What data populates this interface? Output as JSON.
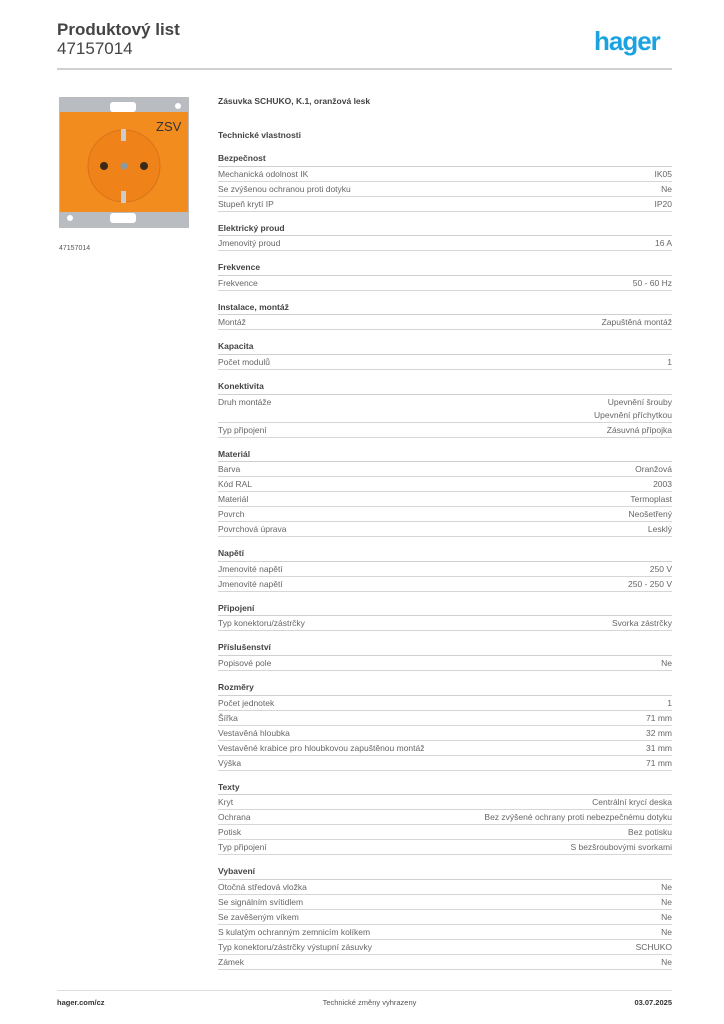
{
  "header": {
    "title": "Produktový list",
    "doc_number": "47157014",
    "logo": "hager",
    "brand_color": "#1aa3e0"
  },
  "product": {
    "name": "Zásuvka SCHUKO, K.1, oranžová lesk",
    "image_caption": "47157014",
    "image_label": "ZSV",
    "product_color": "#f28c1e",
    "section_title": "Technické vlastnosti"
  },
  "sections": [
    {
      "title": "Bezpečnost",
      "rows": [
        [
          "Mechanická odolnost IK",
          "IK05"
        ],
        [
          "Se zvýšenou ochranou proti dotyku",
          "Ne"
        ],
        [
          "Stupeň krytí IP",
          "IP20"
        ]
      ]
    },
    {
      "title": "Elektrický proud",
      "rows": [
        [
          "Jmenovitý proud",
          "16 A"
        ]
      ]
    },
    {
      "title": "Frekvence",
      "rows": [
        [
          "Frekvence",
          "50 - 60 Hz"
        ]
      ]
    },
    {
      "title": "Instalace, montáž",
      "rows": [
        [
          "Montáž",
          "Zapuštěná montáž"
        ]
      ]
    },
    {
      "title": "Kapacita",
      "rows": [
        [
          "Počet modulů",
          "1"
        ]
      ]
    },
    {
      "title": "Konektivita",
      "rows": [
        [
          "Druh montáže",
          "Upevnění šrouby\nUpevnění příchytkou"
        ],
        [
          "Typ připojení",
          "Zásuvná přípojka"
        ]
      ]
    },
    {
      "title": "Materiál",
      "rows": [
        [
          "Barva",
          "Oranžová"
        ],
        [
          "Kód RAL",
          "2003"
        ],
        [
          "Materiál",
          "Termoplast"
        ],
        [
          "Povrch",
          "Neošetřený"
        ],
        [
          "Povrchová úprava",
          "Lesklý"
        ]
      ]
    },
    {
      "title": "Napětí",
      "rows": [
        [
          "Jmenovité napětí",
          "250 V"
        ],
        [
          "Jmenovité napětí",
          "250 - 250 V"
        ]
      ]
    },
    {
      "title": "Připojení",
      "rows": [
        [
          "Typ konektoru/zástrčky",
          "Svorka zástrčky"
        ]
      ]
    },
    {
      "title": "Příslušenství",
      "rows": [
        [
          "Popisové pole",
          "Ne"
        ]
      ]
    },
    {
      "title": "Rozměry",
      "rows": [
        [
          "Počet jednotek",
          "1"
        ],
        [
          "Šířka",
          "71 mm"
        ],
        [
          "Vestavěná hloubka",
          "32 mm"
        ],
        [
          "Vestavěné krabice pro hloubkovou zapuštěnou montáž",
          "31 mm"
        ],
        [
          "Výška",
          "71 mm"
        ]
      ]
    },
    {
      "title": "Texty",
      "rows": [
        [
          "Kryt",
          "Centrální krycí deska"
        ],
        [
          "Ochrana",
          "Bez zvýšené ochrany proti nebezpečnému dotyku"
        ],
        [
          "Potisk",
          "Bez potisku"
        ],
        [
          "Typ připojení",
          "S bezšroubovými svorkami"
        ]
      ]
    },
    {
      "title": "Vybavení",
      "rows": [
        [
          "Otočná středová vložka",
          "Ne"
        ],
        [
          "Se signálním svítidlem",
          "Ne"
        ],
        [
          "Se zavěšeným víkem",
          "Ne"
        ],
        [
          "S kulatým ochranným zemnicím kolíkem",
          "Ne"
        ],
        [
          "Typ konektoru/zástrčky výstupní zásuvky",
          "SCHUKO"
        ],
        [
          "Zámek",
          "Ne"
        ]
      ]
    }
  ],
  "footer": {
    "website": "hager.com/cz",
    "notice": "Technické změny vyhrazeny",
    "date": "03.07.2025"
  }
}
